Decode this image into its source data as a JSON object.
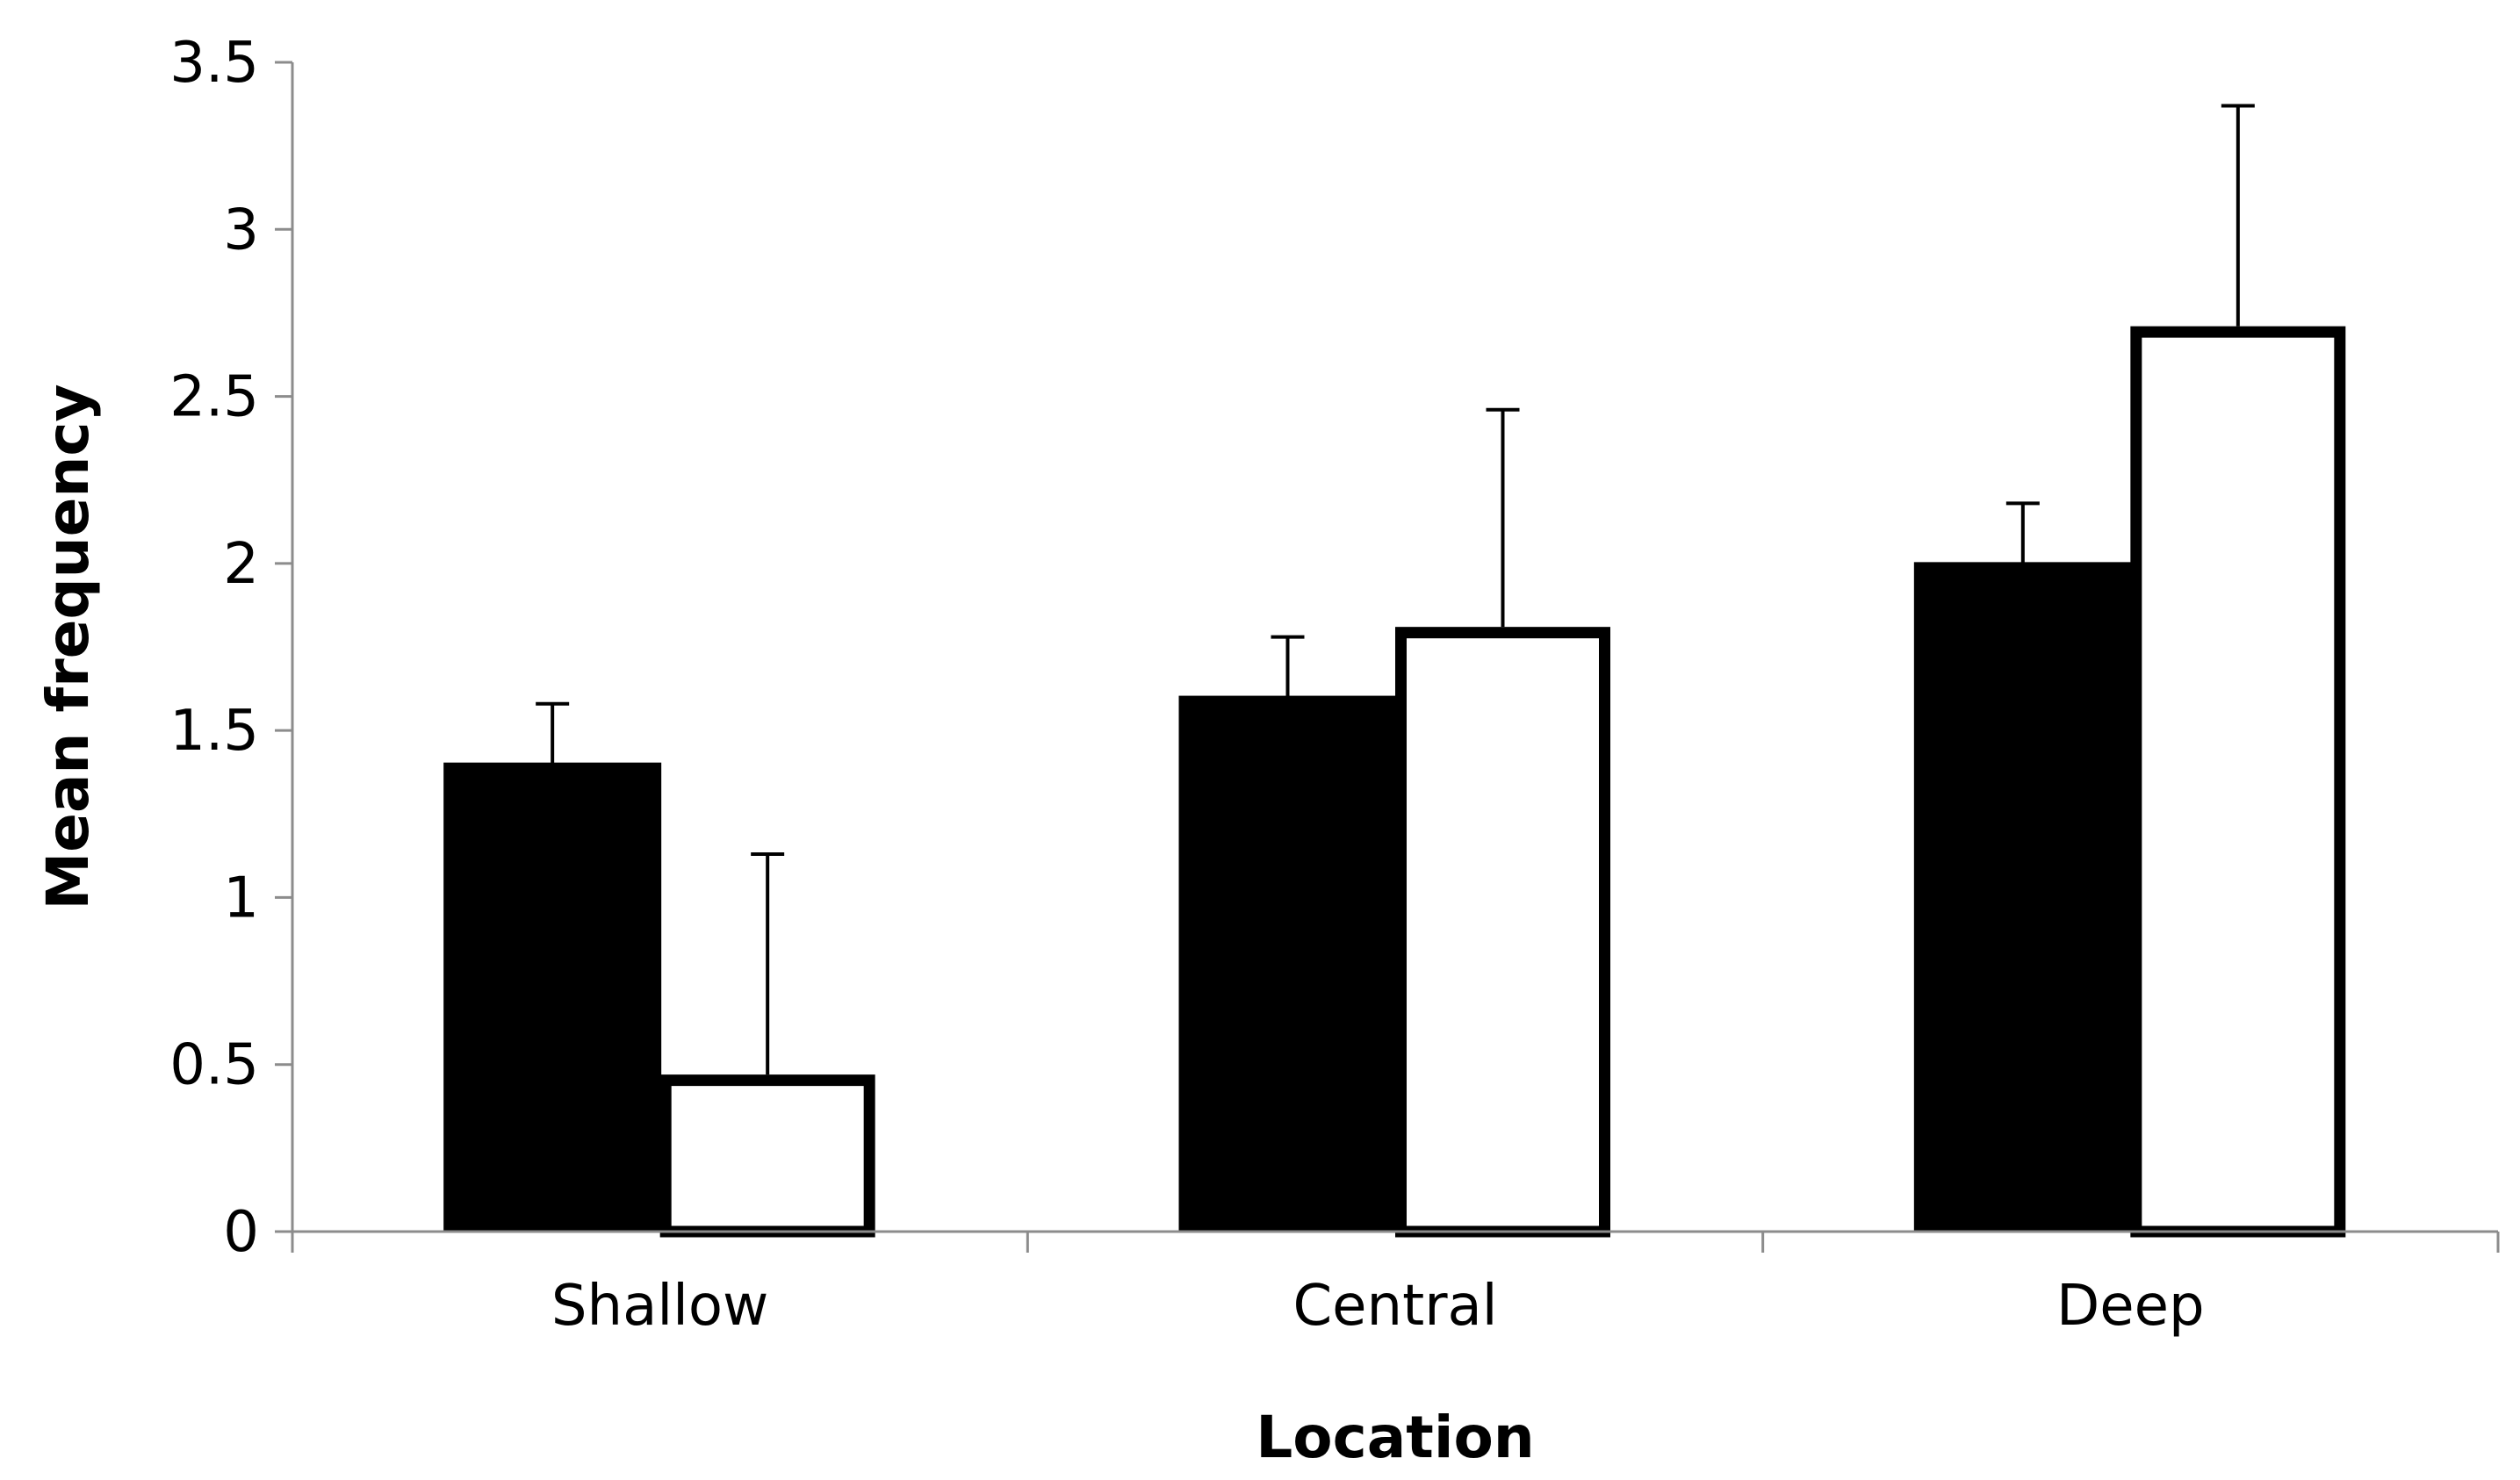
{
  "chart_data": {
    "type": "bar",
    "title": "",
    "xlabel": "Location",
    "ylabel": "Mean frequency",
    "categories": [
      "Shallow",
      "Central",
      "Deep"
    ],
    "ylim": [
      0,
      3.5
    ],
    "yticks": [
      0,
      0.5,
      1,
      1.5,
      2,
      2.5,
      3,
      3.5
    ],
    "ytick_labels": [
      "0",
      "0.5",
      "1",
      "1.5",
      "2",
      "2.5",
      "3",
      "3.5"
    ],
    "grid": false,
    "legend": "none",
    "series": [
      {
        "values": [
          1.4,
          1.6,
          2.0
        ],
        "errors": [
          0.18,
          0.18,
          0.18
        ],
        "fill": "#000000",
        "stroke": "#000000"
      },
      {
        "values": [
          0.47,
          1.81,
          2.71
        ],
        "errors": [
          0.66,
          0.65,
          0.66
        ],
        "fill": "#ffffff",
        "stroke": "#000000"
      }
    ]
  }
}
